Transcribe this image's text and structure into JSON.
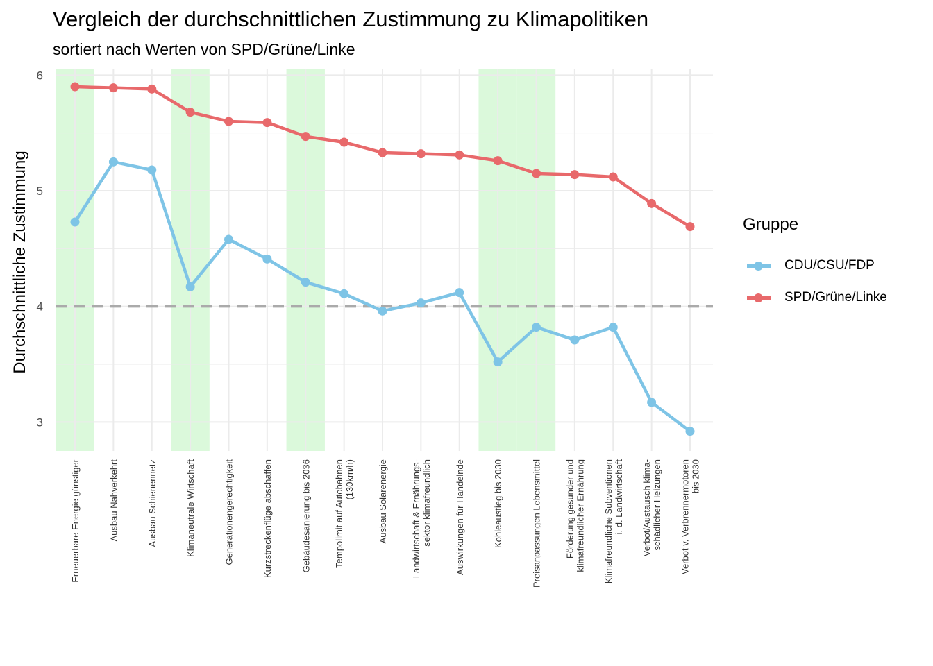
{
  "chart_data": {
    "type": "line",
    "title": "Vergleich der durchschnittlichen Zustimmung zu Klimapolitiken",
    "subtitle": "sortiert nach Werten von SPD/Grüne/Linke",
    "xlabel": "",
    "ylabel": "Durchschnittliche Zustimmung",
    "ylim": [
      2.75,
      6.05
    ],
    "yticks": [
      3,
      4,
      5,
      6
    ],
    "reference_line": {
      "y": 4,
      "style": "dashed",
      "color": "#aaaaaa"
    },
    "highlighted_categories": [
      0,
      3,
      6,
      11,
      12
    ],
    "highlight_color": "#dbf9db",
    "categories": [
      "Erneuerbare Energie günstiger",
      "Ausbau Nahverkehrt",
      "Ausbau Schienennetz",
      "Klimaneutrale Wirtschaft",
      "Generationengerechtigkeit",
      "Kurzstreckenflüge abschaffen",
      "Gebäudesanierung bis 2036",
      "Tempolimit auf Autobahnen\n(130km/h)",
      "Ausbau Solarenergie",
      "Landwirtschaft & Ernährungs-\nsektor klimafreundlich",
      "Auswirkungen für Handelnde",
      "Kohleaustieg bis 2030",
      "Preisanpassungen Lebensmittel",
      "Förderung gesunder und\nklimafreundlicher Ernährung",
      "Klimafreundliche Subventionen\ni. d. Landwirtschaft",
      "Verbot/Austausch klima-\nschädlicher Heizungen",
      "Verbot v. Verbrennermotoren\nbis 2030"
    ],
    "series": [
      {
        "name": "CDU/CSU/FDP",
        "color": "#7ec4e6",
        "values": [
          4.73,
          5.25,
          5.18,
          4.17,
          4.58,
          4.41,
          4.21,
          4.11,
          3.96,
          4.03,
          4.12,
          3.52,
          3.82,
          3.71,
          3.82,
          3.17,
          2.92
        ]
      },
      {
        "name": "SPD/Grüne/Linke",
        "color": "#e8696b",
        "values": [
          5.9,
          5.89,
          5.88,
          5.68,
          5.6,
          5.59,
          5.47,
          5.42,
          5.33,
          5.32,
          5.31,
          5.26,
          5.15,
          5.14,
          5.12,
          4.89,
          4.69
        ]
      }
    ],
    "grid": true,
    "legend": {
      "title": "Gruppe",
      "position": "right"
    }
  }
}
